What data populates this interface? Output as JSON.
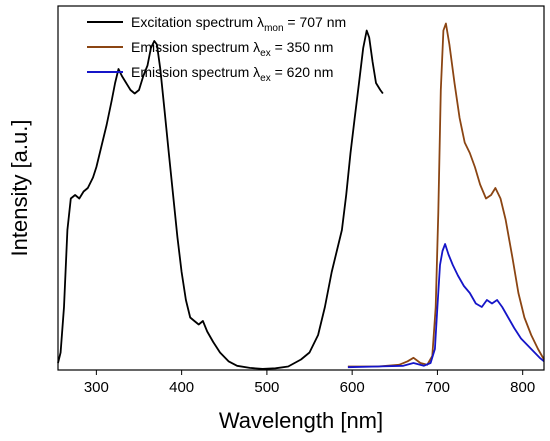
{
  "chart_data": {
    "type": "line",
    "title": "",
    "xlabel": "Wavelength [nm]",
    "ylabel": "Intensity [a.u.]",
    "xlim": [
      255,
      825
    ],
    "ylim": [
      0,
      1.04
    ],
    "xticks": [
      300,
      400,
      500,
      600,
      700,
      800
    ],
    "xtick_labels": [
      "300",
      "400",
      "500",
      "600",
      "700",
      "800"
    ],
    "y_ticks_shown": false,
    "grid": false,
    "legend_position": "top-left",
    "series": [
      {
        "name": "Excitation spectrum",
        "legend_parts": {
          "main": "Excitation spectrum λ",
          "sub": "mon",
          "tail": " = 707 nm"
        },
        "color": "#000000",
        "points": [
          [
            255,
            0.02
          ],
          [
            258,
            0.05
          ],
          [
            262,
            0.18
          ],
          [
            266,
            0.4
          ],
          [
            270,
            0.49
          ],
          [
            275,
            0.5
          ],
          [
            280,
            0.49
          ],
          [
            285,
            0.51
          ],
          [
            290,
            0.52
          ],
          [
            296,
            0.55
          ],
          [
            300,
            0.58
          ],
          [
            306,
            0.64
          ],
          [
            312,
            0.7
          ],
          [
            318,
            0.77
          ],
          [
            322,
            0.82
          ],
          [
            326,
            0.86
          ],
          [
            330,
            0.84
          ],
          [
            335,
            0.82
          ],
          [
            340,
            0.8
          ],
          [
            345,
            0.79
          ],
          [
            350,
            0.8
          ],
          [
            355,
            0.84
          ],
          [
            360,
            0.87
          ],
          [
            364,
            0.92
          ],
          [
            368,
            0.94
          ],
          [
            371,
            0.93
          ],
          [
            375,
            0.86
          ],
          [
            380,
            0.74
          ],
          [
            385,
            0.62
          ],
          [
            390,
            0.5
          ],
          [
            395,
            0.38
          ],
          [
            400,
            0.28
          ],
          [
            405,
            0.2
          ],
          [
            410,
            0.15
          ],
          [
            415,
            0.14
          ],
          [
            420,
            0.13
          ],
          [
            425,
            0.14
          ],
          [
            430,
            0.11
          ],
          [
            437,
            0.08
          ],
          [
            445,
            0.05
          ],
          [
            455,
            0.025
          ],
          [
            465,
            0.012
          ],
          [
            480,
            0.006
          ],
          [
            495,
            0.003
          ],
          [
            510,
            0.005
          ],
          [
            525,
            0.01
          ],
          [
            540,
            0.03
          ],
          [
            550,
            0.05
          ],
          [
            560,
            0.1
          ],
          [
            568,
            0.18
          ],
          [
            576,
            0.28
          ],
          [
            582,
            0.34
          ],
          [
            588,
            0.4
          ],
          [
            593,
            0.5
          ],
          [
            598,
            0.62
          ],
          [
            603,
            0.72
          ],
          [
            608,
            0.82
          ],
          [
            613,
            0.92
          ],
          [
            617,
            0.97
          ],
          [
            620,
            0.95
          ],
          [
            624,
            0.88
          ],
          [
            628,
            0.82
          ],
          [
            633,
            0.8
          ],
          [
            636,
            0.79
          ]
        ]
      },
      {
        "name": "Emission spectrum",
        "legend_parts": {
          "main": "Emission spectrum λ",
          "sub": "ex",
          "tail": " = 350 nm"
        },
        "color": "#8b4513",
        "points": [
          [
            595,
            0.01
          ],
          [
            630,
            0.01
          ],
          [
            655,
            0.015
          ],
          [
            665,
            0.025
          ],
          [
            672,
            0.035
          ],
          [
            680,
            0.02
          ],
          [
            688,
            0.015
          ],
          [
            694,
            0.04
          ],
          [
            698,
            0.18
          ],
          [
            701,
            0.45
          ],
          [
            704,
            0.8
          ],
          [
            707,
            0.97
          ],
          [
            710,
            0.99
          ],
          [
            714,
            0.93
          ],
          [
            720,
            0.82
          ],
          [
            726,
            0.72
          ],
          [
            732,
            0.65
          ],
          [
            738,
            0.62
          ],
          [
            744,
            0.58
          ],
          [
            750,
            0.53
          ],
          [
            757,
            0.49
          ],
          [
            763,
            0.5
          ],
          [
            768,
            0.52
          ],
          [
            774,
            0.49
          ],
          [
            780,
            0.43
          ],
          [
            788,
            0.32
          ],
          [
            795,
            0.22
          ],
          [
            802,
            0.15
          ],
          [
            810,
            0.1
          ],
          [
            818,
            0.06
          ],
          [
            825,
            0.03
          ]
        ]
      },
      {
        "name": "Emission spectrum",
        "legend_parts": {
          "main": "Emission spectrum λ",
          "sub": "ex",
          "tail": " = 620 nm"
        },
        "color": "#1515c8",
        "points": [
          [
            595,
            0.008
          ],
          [
            630,
            0.01
          ],
          [
            660,
            0.012
          ],
          [
            672,
            0.02
          ],
          [
            684,
            0.012
          ],
          [
            692,
            0.02
          ],
          [
            697,
            0.06
          ],
          [
            700,
            0.18
          ],
          [
            703,
            0.3
          ],
          [
            706,
            0.34
          ],
          [
            709,
            0.36
          ],
          [
            713,
            0.33
          ],
          [
            718,
            0.3
          ],
          [
            724,
            0.27
          ],
          [
            731,
            0.24
          ],
          [
            738,
            0.22
          ],
          [
            745,
            0.19
          ],
          [
            752,
            0.18
          ],
          [
            758,
            0.2
          ],
          [
            764,
            0.19
          ],
          [
            770,
            0.2
          ],
          [
            776,
            0.18
          ],
          [
            783,
            0.15
          ],
          [
            790,
            0.12
          ],
          [
            798,
            0.09
          ],
          [
            806,
            0.07
          ],
          [
            814,
            0.05
          ],
          [
            820,
            0.035
          ],
          [
            825,
            0.025
          ]
        ]
      }
    ]
  }
}
